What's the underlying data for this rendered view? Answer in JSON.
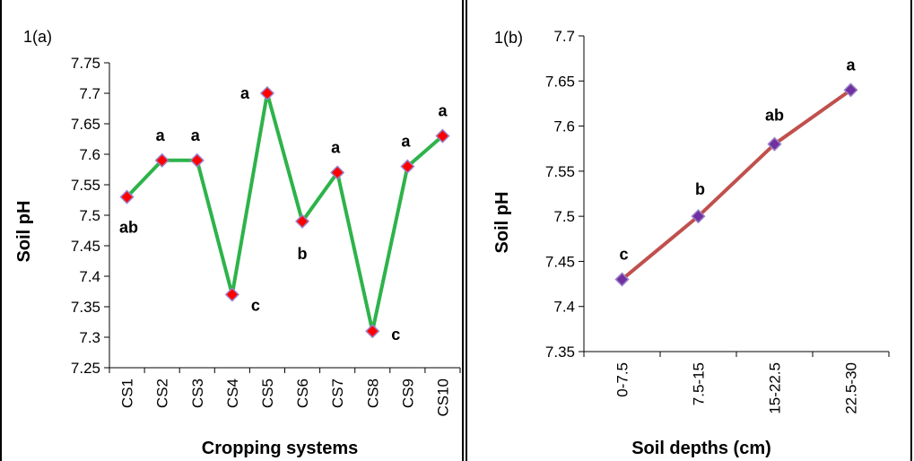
{
  "chart_data": [
    {
      "type": "line",
      "panel_label": "1(a)",
      "xlabel": "Cropping systems",
      "ylabel": "Soil pH",
      "categories": [
        "CS1",
        "CS2",
        "CS3",
        "CS4",
        "CS5",
        "CS6",
        "CS7",
        "CS8",
        "CS9",
        "CS10"
      ],
      "values": [
        7.53,
        7.59,
        7.59,
        7.37,
        7.7,
        7.49,
        7.57,
        7.31,
        7.58,
        7.63
      ],
      "significance": [
        "ab",
        "a",
        "a",
        "c",
        "a",
        "b",
        "a",
        "c",
        "a",
        "a"
      ],
      "ylim": [
        7.25,
        7.75
      ],
      "yticks": [
        "7.25",
        "7.3",
        "7.35",
        "7.4",
        "7.45",
        "7.5",
        "7.55",
        "7.6",
        "7.65",
        "7.7",
        "7.75"
      ],
      "line_color": "#2db34a",
      "marker_color": "#ff0000",
      "marker_edge_color": "#9b80c8",
      "grid": false
    },
    {
      "type": "line",
      "panel_label": "1(b)",
      "xlabel": "Soil depths (cm)",
      "ylabel": "Soil pH",
      "categories": [
        "0-7.5",
        "7.5-15",
        "15-22.5",
        "22.5-30"
      ],
      "values": [
        7.43,
        7.5,
        7.58,
        7.64
      ],
      "significance": [
        "c",
        "b",
        "ab",
        "a"
      ],
      "ylim": [
        7.35,
        7.7
      ],
      "yticks": [
        "7.35",
        "7.4",
        "7.45",
        "7.5",
        "7.55",
        "7.6",
        "7.65",
        "7.7"
      ],
      "line_color": "#c0504d",
      "marker_color": "#7030a0",
      "marker_edge_color": "#9b80c8",
      "grid": false
    }
  ]
}
